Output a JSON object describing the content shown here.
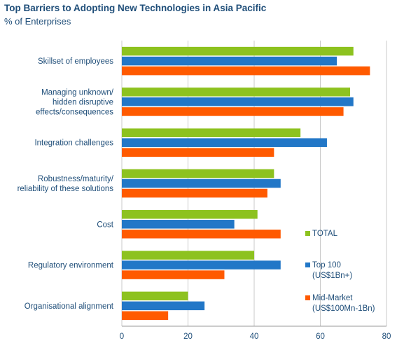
{
  "chart_data": {
    "type": "bar",
    "orientation": "horizontal",
    "title": "Top Barriers to Adopting New Technologies in Asia Pacific",
    "subtitle": "% of Enterprises",
    "categories": [
      [
        "Skillset of employees"
      ],
      [
        "Managing unknown/",
        "hidden disruptive",
        "effects/consequences"
      ],
      [
        "Integration challenges"
      ],
      [
        "Robustness/maturity/",
        "reliability of these solutions"
      ],
      [
        "Cost"
      ],
      [
        "Regulatory environment"
      ],
      [
        "Organisational alignment"
      ]
    ],
    "series": [
      {
        "name": "TOTAL",
        "legend_lines": [
          "TOTAL"
        ],
        "color": "#8dc21f",
        "values": [
          70,
          69,
          54,
          46,
          41,
          40,
          20
        ]
      },
      {
        "name": "Top 100 (US$1Bn+)",
        "legend_lines": [
          "Top 100",
          "(US$1Bn+)"
        ],
        "color": "#2277c7",
        "values": [
          65,
          70,
          62,
          48,
          34,
          48,
          25
        ]
      },
      {
        "name": "Mid-Market (US$100Mn-1Bn)",
        "legend_lines": [
          "Mid-Market",
          "(US$100Mn-1Bn)"
        ],
        "color": "#ff5a00",
        "values": [
          75,
          67,
          46,
          44,
          48,
          31,
          14
        ]
      }
    ],
    "xlim": [
      0,
      80
    ],
    "xticks": [
      0,
      20,
      40,
      60,
      80
    ],
    "grid": true,
    "legend": "bottom-right"
  }
}
